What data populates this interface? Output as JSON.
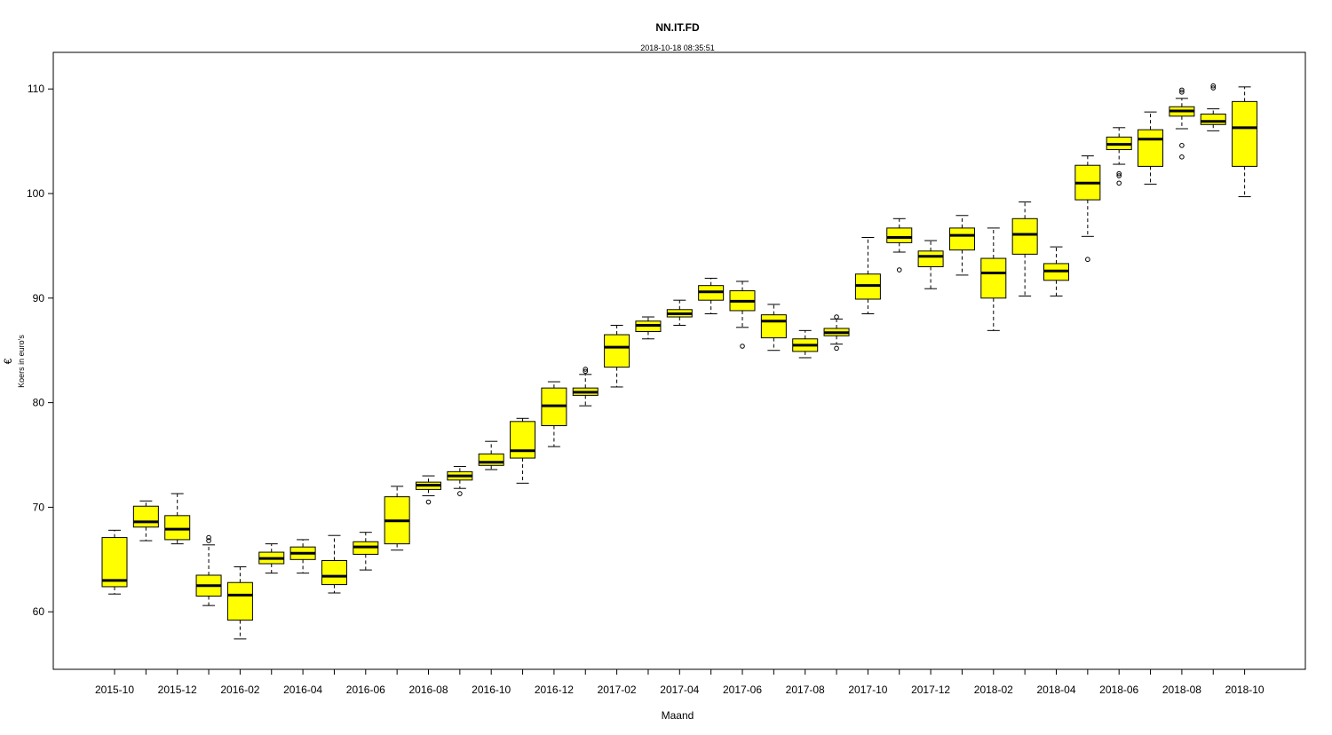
{
  "chart_data": {
    "type": "boxplot",
    "title": "NN.IT.FD",
    "subtitle": "2018-10-18 08:35:51",
    "xlabel": "Maand",
    "ylabel": "Koers in euro's",
    "ylabel_symbol": "€",
    "ylim": [
      54.5,
      113.5
    ],
    "yticks": [
      60,
      70,
      80,
      90,
      100,
      110
    ],
    "grid": false,
    "legend": "none",
    "box_color": "#ffff00",
    "categories": [
      "2015-10",
      "2015-11",
      "2015-12",
      "2016-01",
      "2016-02",
      "2016-03",
      "2016-04",
      "2016-05",
      "2016-06",
      "2016-07",
      "2016-08",
      "2016-09",
      "2016-10",
      "2016-11",
      "2016-12",
      "2017-01",
      "2017-02",
      "2017-03",
      "2017-04",
      "2017-05",
      "2017-06",
      "2017-07",
      "2017-08",
      "2017-09",
      "2017-10",
      "2017-11",
      "2017-12",
      "2018-01",
      "2018-02",
      "2018-03",
      "2018-04",
      "2018-05",
      "2018-06",
      "2018-07",
      "2018-08",
      "2018-09",
      "2018-10"
    ],
    "xtick_labels": [
      "2015-10",
      "2015-12",
      "2016-02",
      "2016-04",
      "2016-06",
      "2016-08",
      "2016-10",
      "2016-12",
      "2017-02",
      "2017-04",
      "2017-06",
      "2017-08",
      "2017-10",
      "2017-12",
      "2018-02",
      "2018-04",
      "2018-06",
      "2018-08",
      "2018-10"
    ],
    "boxes": [
      {
        "min": 61.7,
        "q1": 62.4,
        "median": 63.0,
        "q3": 67.1,
        "max": 67.8,
        "outliers": []
      },
      {
        "min": 66.8,
        "q1": 68.1,
        "median": 68.6,
        "q3": 70.1,
        "max": 70.6,
        "outliers": []
      },
      {
        "min": 66.5,
        "q1": 66.9,
        "median": 67.9,
        "q3": 69.2,
        "max": 71.3,
        "outliers": []
      },
      {
        "min": 60.6,
        "q1": 61.5,
        "median": 62.5,
        "q3": 63.5,
        "max": 66.4,
        "outliers": [
          66.8,
          67.1
        ]
      },
      {
        "min": 57.4,
        "q1": 59.2,
        "median": 61.6,
        "q3": 62.8,
        "max": 64.3,
        "outliers": []
      },
      {
        "min": 63.7,
        "q1": 64.6,
        "median": 65.1,
        "q3": 65.7,
        "max": 66.5,
        "outliers": []
      },
      {
        "min": 63.7,
        "q1": 65.0,
        "median": 65.6,
        "q3": 66.2,
        "max": 66.9,
        "outliers": []
      },
      {
        "min": 61.8,
        "q1": 62.6,
        "median": 63.4,
        "q3": 64.9,
        "max": 67.3,
        "outliers": []
      },
      {
        "min": 64.0,
        "q1": 65.5,
        "median": 66.2,
        "q3": 66.7,
        "max": 67.6,
        "outliers": []
      },
      {
        "min": 65.9,
        "q1": 66.5,
        "median": 68.7,
        "q3": 71.0,
        "max": 72.0,
        "outliers": []
      },
      {
        "min": 71.1,
        "q1": 71.7,
        "median": 72.1,
        "q3": 72.4,
        "max": 73.0,
        "outliers": [
          70.5
        ]
      },
      {
        "min": 71.8,
        "q1": 72.6,
        "median": 73.0,
        "q3": 73.4,
        "max": 73.9,
        "outliers": [
          71.3
        ]
      },
      {
        "min": 73.6,
        "q1": 74.0,
        "median": 74.3,
        "q3": 75.1,
        "max": 76.3,
        "outliers": []
      },
      {
        "min": 72.3,
        "q1": 74.7,
        "median": 75.4,
        "q3": 78.2,
        "max": 78.5,
        "outliers": []
      },
      {
        "min": 75.8,
        "q1": 77.8,
        "median": 79.7,
        "q3": 81.4,
        "max": 82.0,
        "outliers": []
      },
      {
        "min": 79.7,
        "q1": 80.7,
        "median": 81.0,
        "q3": 81.4,
        "max": 82.7,
        "outliers": [
          83.0,
          83.2
        ]
      },
      {
        "min": 81.5,
        "q1": 83.4,
        "median": 85.3,
        "q3": 86.5,
        "max": 87.4,
        "outliers": []
      },
      {
        "min": 86.1,
        "q1": 86.8,
        "median": 87.4,
        "q3": 87.8,
        "max": 88.2,
        "outliers": []
      },
      {
        "min": 87.4,
        "q1": 88.2,
        "median": 88.5,
        "q3": 88.9,
        "max": 89.8,
        "outliers": []
      },
      {
        "min": 88.5,
        "q1": 89.8,
        "median": 90.6,
        "q3": 91.2,
        "max": 91.9,
        "outliers": []
      },
      {
        "min": 87.2,
        "q1": 88.8,
        "median": 89.7,
        "q3": 90.7,
        "max": 91.6,
        "outliers": [
          85.4
        ]
      },
      {
        "min": 85.0,
        "q1": 86.2,
        "median": 87.8,
        "q3": 88.4,
        "max": 89.4,
        "outliers": []
      },
      {
        "min": 84.3,
        "q1": 84.9,
        "median": 85.5,
        "q3": 86.1,
        "max": 86.9,
        "outliers": []
      },
      {
        "min": 85.6,
        "q1": 86.4,
        "median": 86.7,
        "q3": 87.1,
        "max": 88.0,
        "outliers": [
          85.2,
          88.2
        ]
      },
      {
        "min": 88.5,
        "q1": 89.9,
        "median": 91.2,
        "q3": 92.3,
        "max": 95.8,
        "outliers": []
      },
      {
        "min": 94.4,
        "q1": 95.3,
        "median": 95.8,
        "q3": 96.7,
        "max": 97.6,
        "outliers": [
          92.7
        ]
      },
      {
        "min": 90.9,
        "q1": 93.0,
        "median": 94.0,
        "q3": 94.5,
        "max": 95.5,
        "outliers": []
      },
      {
        "min": 92.2,
        "q1": 94.6,
        "median": 96.0,
        "q3": 96.7,
        "max": 97.9,
        "outliers": []
      },
      {
        "min": 86.9,
        "q1": 90.0,
        "median": 92.4,
        "q3": 93.8,
        "max": 96.7,
        "outliers": []
      },
      {
        "min": 90.2,
        "q1": 94.2,
        "median": 96.1,
        "q3": 97.6,
        "max": 99.2,
        "outliers": []
      },
      {
        "min": 90.2,
        "q1": 91.7,
        "median": 92.6,
        "q3": 93.3,
        "max": 94.9,
        "outliers": []
      },
      {
        "min": 95.9,
        "q1": 99.4,
        "median": 101.0,
        "q3": 102.7,
        "max": 103.6,
        "outliers": [
          93.7
        ]
      },
      {
        "min": 102.8,
        "q1": 104.2,
        "median": 104.7,
        "q3": 105.4,
        "max": 106.3,
        "outliers": [
          101.0,
          101.7,
          101.9
        ]
      },
      {
        "min": 100.9,
        "q1": 102.6,
        "median": 105.2,
        "q3": 106.1,
        "max": 107.8,
        "outliers": []
      },
      {
        "min": 106.2,
        "q1": 107.4,
        "median": 107.9,
        "q3": 108.3,
        "max": 109.1,
        "outliers": [
          103.5,
          104.6,
          109.7,
          109.9
        ]
      },
      {
        "min": 106.0,
        "q1": 106.6,
        "median": 106.9,
        "q3": 107.6,
        "max": 108.1,
        "outliers": [
          110.1,
          110.3
        ]
      },
      {
        "min": 99.7,
        "q1": 102.6,
        "median": 106.3,
        "q3": 108.8,
        "max": 110.2,
        "outliers": []
      }
    ]
  }
}
